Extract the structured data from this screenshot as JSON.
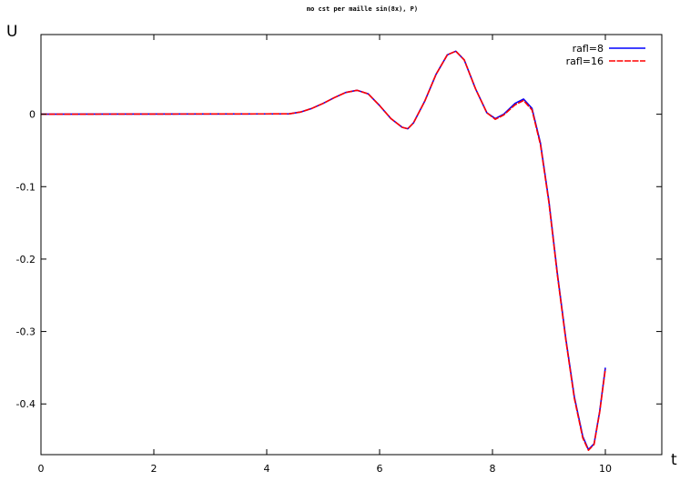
{
  "chart_data": {
    "type": "line",
    "title": "mo cst per maille sin(8x), P)",
    "xlabel": "t",
    "ylabel": "U",
    "xlim": [
      0,
      11
    ],
    "ylim": [
      -0.47,
      0.11
    ],
    "xticks": [
      0,
      2,
      4,
      6,
      8,
      10
    ],
    "yticks": [
      0,
      -0.1,
      -0.2,
      -0.3,
      -0.4
    ],
    "xtick_labels": [
      "0",
      "2",
      "4",
      "6",
      "8",
      "10"
    ],
    "ytick_labels": [
      "0",
      "-0.1",
      "-0.2",
      "-0.3",
      "-0.4"
    ],
    "grid": false,
    "legend_position": "top-right",
    "series": [
      {
        "name": "rafl=8",
        "color": "#0000ff",
        "dash": "solid",
        "x": [
          0,
          4.4,
          4.6,
          4.8,
          5.0,
          5.2,
          5.4,
          5.6,
          5.8,
          6.0,
          6.2,
          6.4,
          6.5,
          6.6,
          6.8,
          7.0,
          7.2,
          7.35,
          7.5,
          7.7,
          7.9,
          8.05,
          8.2,
          8.4,
          8.55,
          8.7,
          8.85,
          9.0,
          9.15,
          9.3,
          9.45,
          9.6,
          9.7,
          9.8,
          9.9,
          10.0
        ],
        "y": [
          0,
          0.0005,
          0.003,
          0.008,
          0.015,
          0.023,
          0.03,
          0.033,
          0.028,
          0.012,
          -0.006,
          -0.018,
          -0.02,
          -0.012,
          0.018,
          0.055,
          0.082,
          0.087,
          0.075,
          0.035,
          0.002,
          -0.006,
          0.0,
          0.015,
          0.021,
          0.008,
          -0.04,
          -0.12,
          -0.22,
          -0.31,
          -0.39,
          -0.445,
          -0.463,
          -0.455,
          -0.41,
          -0.35
        ]
      },
      {
        "name": "rafl=16",
        "color": "#ff0000",
        "dash": "dashed",
        "x": [
          0,
          4.4,
          4.6,
          4.8,
          5.0,
          5.2,
          5.4,
          5.6,
          5.8,
          6.0,
          6.2,
          6.4,
          6.5,
          6.6,
          6.8,
          7.0,
          7.2,
          7.35,
          7.5,
          7.7,
          7.9,
          8.05,
          8.2,
          8.4,
          8.55,
          8.7,
          8.85,
          9.0,
          9.15,
          9.3,
          9.45,
          9.6,
          9.7,
          9.8,
          9.9,
          10.0
        ],
        "y": [
          0,
          0.0005,
          0.003,
          0.008,
          0.015,
          0.023,
          0.03,
          0.033,
          0.028,
          0.012,
          -0.006,
          -0.018,
          -0.02,
          -0.012,
          0.018,
          0.055,
          0.082,
          0.087,
          0.075,
          0.035,
          0.002,
          -0.007,
          -0.001,
          0.013,
          0.019,
          0.006,
          -0.042,
          -0.122,
          -0.222,
          -0.312,
          -0.392,
          -0.447,
          -0.464,
          -0.456,
          -0.411,
          -0.352
        ]
      }
    ]
  }
}
